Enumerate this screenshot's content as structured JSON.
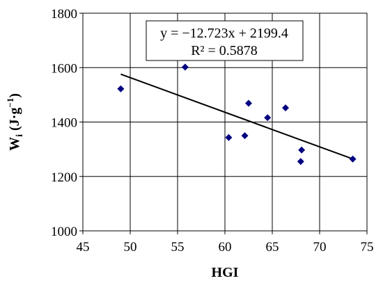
{
  "chart_data": {
    "type": "scatter",
    "title": "",
    "xlabel": "HGI",
    "ylabel": {
      "base": "W",
      "subscript": "i",
      "unit_prefix": "(J·g",
      "unit_exp": "−1",
      "unit_suffix": ")"
    },
    "xlim": [
      45,
      75
    ],
    "ylim": [
      1000,
      1800
    ],
    "xticks": [
      45,
      50,
      55,
      60,
      65,
      70,
      75
    ],
    "yticks": [
      1000,
      1200,
      1400,
      1600,
      1800
    ],
    "grid": true,
    "marker": "diamond",
    "colors": {
      "marker": "#000080",
      "trendline": "#000000",
      "grid": "#000000"
    },
    "points": [
      {
        "x": 49.0,
        "y": 1522
      },
      {
        "x": 55.8,
        "y": 1602
      },
      {
        "x": 60.4,
        "y": 1343
      },
      {
        "x": 62.1,
        "y": 1350
      },
      {
        "x": 62.5,
        "y": 1469
      },
      {
        "x": 64.5,
        "y": 1416
      },
      {
        "x": 66.4,
        "y": 1452
      },
      {
        "x": 68.1,
        "y": 1297
      },
      {
        "x": 68.0,
        "y": 1255
      },
      {
        "x": 73.5,
        "y": 1264
      }
    ],
    "trendline": {
      "slope": -12.723,
      "intercept": 2199.4,
      "x_range": [
        49.0,
        73.5
      ]
    },
    "annotations": {
      "equation": "y = −12.723x + 2199.4",
      "r_squared": "R² = 0.5878"
    }
  }
}
